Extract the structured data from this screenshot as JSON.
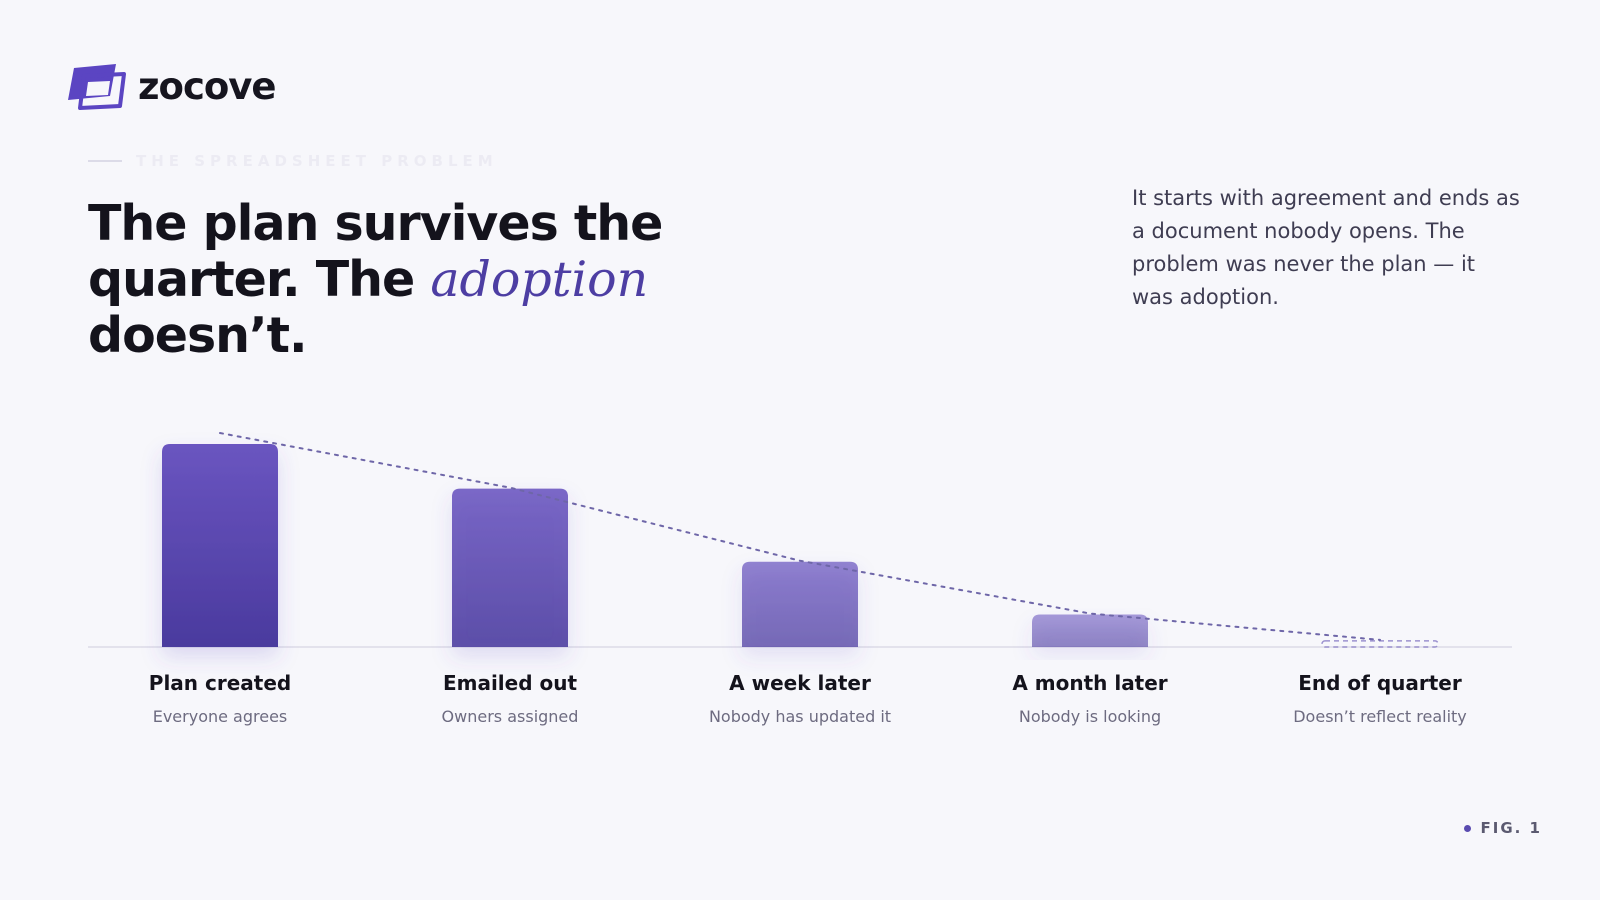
{
  "brand": {
    "name": "zocove",
    "logo_icon": "stacked-cards-logo-icon",
    "color": "#5b45c2"
  },
  "eyebrow": "THE SPREADSHEET PROBLEM",
  "headline": {
    "line1": "The plan survives the",
    "line2_before": "quarter. The ",
    "line2_emphasis": "adoption",
    "line2_after": " doesn’t."
  },
  "intro": "It starts with agreement and ends as a document nobody opens. The problem was never the plan — it was adoption.",
  "figure_label": "FIG. 1",
  "chart_data": {
    "type": "bar",
    "categories": [
      "Plan created",
      "Emailed out",
      "A week later",
      "A month later",
      "End of quarter"
    ],
    "subtitles": [
      "Everyone agrees",
      "Owners assigned",
      "Nobody has updated it",
      "Nobody is looking",
      "Doesn’t reflect reality"
    ],
    "values": [
      100,
      78,
      42,
      16,
      3
    ],
    "ylim": [
      0,
      100
    ],
    "axis_labels_shown": false,
    "trend_line": "dotted",
    "last_bar_style": "dashed-outline",
    "colors": {
      "bar_top": "#6a55c0",
      "bar_bottom": "#4a3a9e",
      "trend": "#6e66a8",
      "baseline": "#e3e2ec"
    }
  }
}
